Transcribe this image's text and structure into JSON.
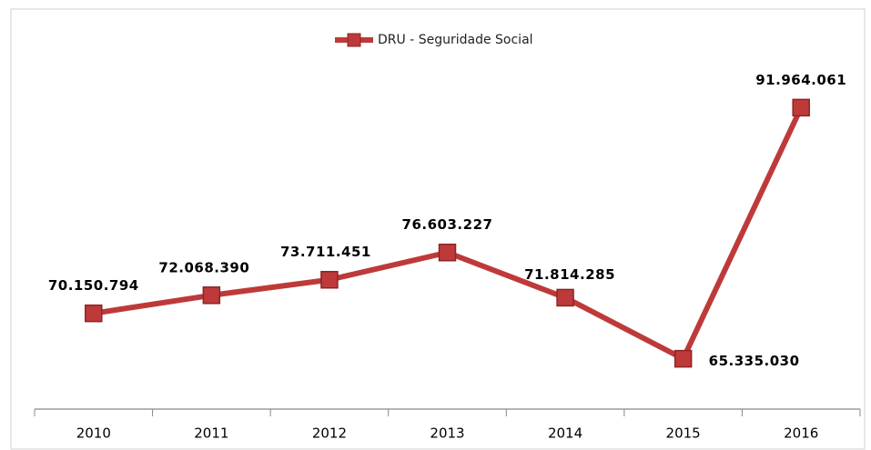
{
  "chart_data": {
    "type": "line",
    "categories": [
      "2010",
      "2011",
      "2012",
      "2013",
      "2014",
      "2015",
      "2016"
    ],
    "series": [
      {
        "name": "DRU - Seguridade Social",
        "color": "#be3a3a",
        "values": [
          70150794,
          72068390,
          73711451,
          76603227,
          71814285,
          65335030,
          91964061
        ],
        "value_labels": [
          "70.150.794",
          "72.068.390",
          "73.711.451",
          "76.603.227",
          "71.814.285",
          "65.335.030",
          "91.964.061"
        ]
      }
    ],
    "ylim": [
      60000000,
      100000000
    ],
    "legend": "top"
  }
}
